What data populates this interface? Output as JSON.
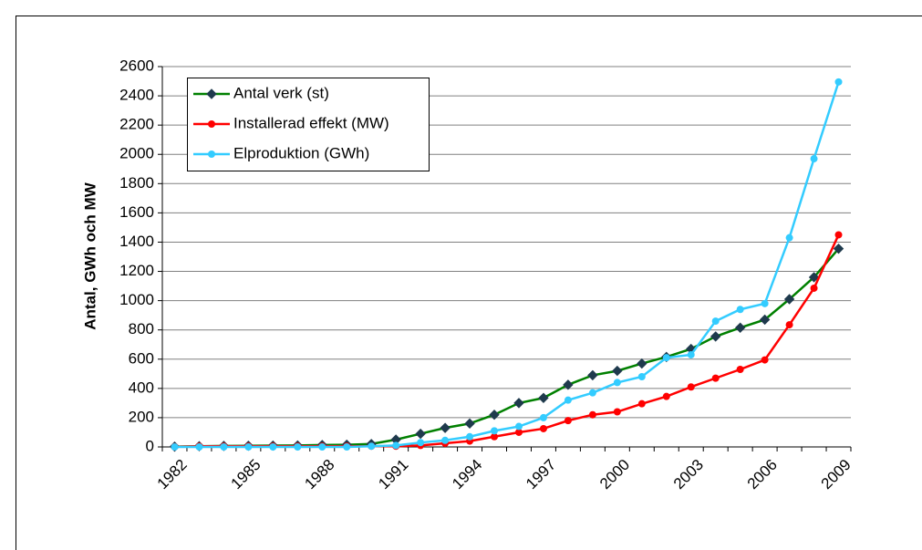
{
  "chart_data": {
    "type": "line",
    "y_label": "Antal, GWh och MW",
    "categories": [
      "1982",
      null,
      null,
      "1985",
      null,
      null,
      "1988",
      null,
      null,
      "1991",
      null,
      null,
      "1994",
      null,
      null,
      "1997",
      null,
      null,
      "2000",
      null,
      null,
      "2003",
      null,
      null,
      "2006",
      null,
      null,
      "2009"
    ],
    "series": [
      {
        "name": "Antal verk (st)",
        "color": "#008000",
        "marker": "diamond",
        "values": [
          2,
          5,
          7,
          8,
          9,
          10,
          13,
          15,
          20,
          50,
          90,
          130,
          160,
          220,
          300,
          335,
          425,
          490,
          520,
          570,
          615,
          670,
          755,
          815,
          870,
          1010,
          1160,
          1355
        ]
      },
      {
        "name": "Installerad effekt (MW)",
        "color": "#ff0000",
        "marker": "circle",
        "values": [
          1,
          5,
          5,
          5,
          5,
          5,
          5,
          5,
          5,
          5,
          10,
          25,
          40,
          70,
          100,
          125,
          180,
          220,
          240,
          295,
          345,
          410,
          470,
          530,
          595,
          835,
          1085,
          1450
        ]
      },
      {
        "name": "Elproduktion (GWh)",
        "color": "#33ccff",
        "marker": "circle",
        "values": [
          0,
          0,
          0,
          0,
          0,
          0,
          0,
          0,
          5,
          10,
          30,
          45,
          70,
          110,
          140,
          200,
          320,
          370,
          440,
          480,
          610,
          630,
          860,
          940,
          980,
          1430,
          1970,
          2495
        ]
      }
    ],
    "ylim": [
      0,
      2600
    ],
    "yticks": [
      0,
      200,
      400,
      600,
      800,
      1000,
      1200,
      1400,
      1600,
      1800,
      2000,
      2200,
      2400,
      2600
    ],
    "grid": true,
    "legend": "upper left"
  }
}
